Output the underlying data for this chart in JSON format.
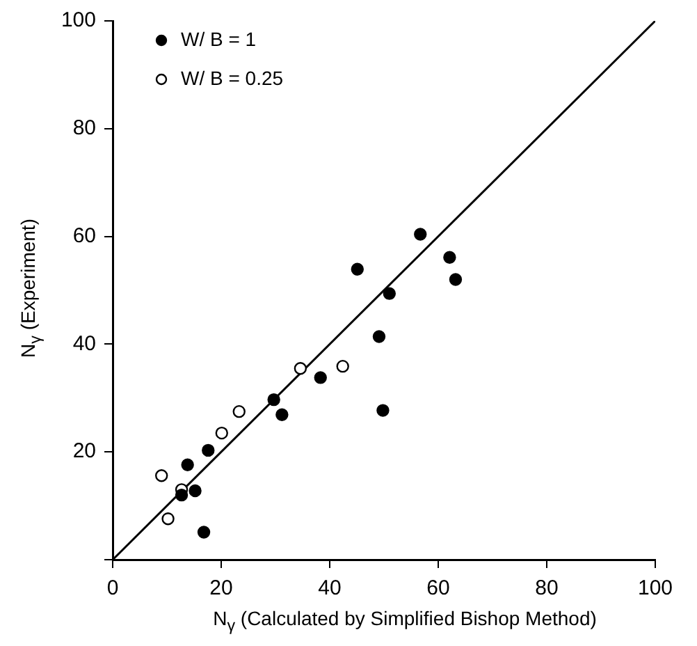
{
  "chart_data": {
    "type": "scatter",
    "xlabel": "N$_{γ}$ (Calculated by Simplified Bishop Method)",
    "ylabel": "N$_{γ}$ (Experiment)",
    "series": [
      {
        "name": "W/ B = 1",
        "color": "#000000",
        "marker": "circle",
        "x": [
          12.7,
          13.8,
          15.2,
          16.8,
          17.6,
          29.7,
          31.2,
          38.3,
          45.1,
          49.1,
          49.8,
          51.0,
          56.7,
          62.1,
          63.2
        ],
        "values": [
          12.0,
          17.6,
          12.8,
          5.1,
          20.3,
          29.7,
          26.9,
          33.8,
          53.9,
          41.4,
          27.7,
          49.4,
          60.4,
          56.1,
          52.0
        ]
      },
      {
        "name": "W/ B = 0.25",
        "color": "#ffffff",
        "marker": "circle",
        "x": [
          9.0,
          10.2,
          12.7,
          20.1,
          23.3,
          34.6,
          42.4
        ],
        "values": [
          15.6,
          7.6,
          13.0,
          23.5,
          27.5,
          35.5,
          35.9
        ]
      },
      {
        "type": "line",
        "color": "#000000",
        "marker": "none",
        "x": [
          0,
          100
        ],
        "values": [
          0,
          100
        ]
      }
    ],
    "xlim": [
      0,
      100
    ],
    "ylim": [
      0,
      100
    ],
    "xticks": [
      0,
      20,
      40,
      60,
      80,
      100
    ],
    "yticks": [
      {
        "value": 0,
        "label": null
      },
      20,
      40,
      60,
      80,
      100
    ],
    "grid": false,
    "legend": "top left"
  }
}
